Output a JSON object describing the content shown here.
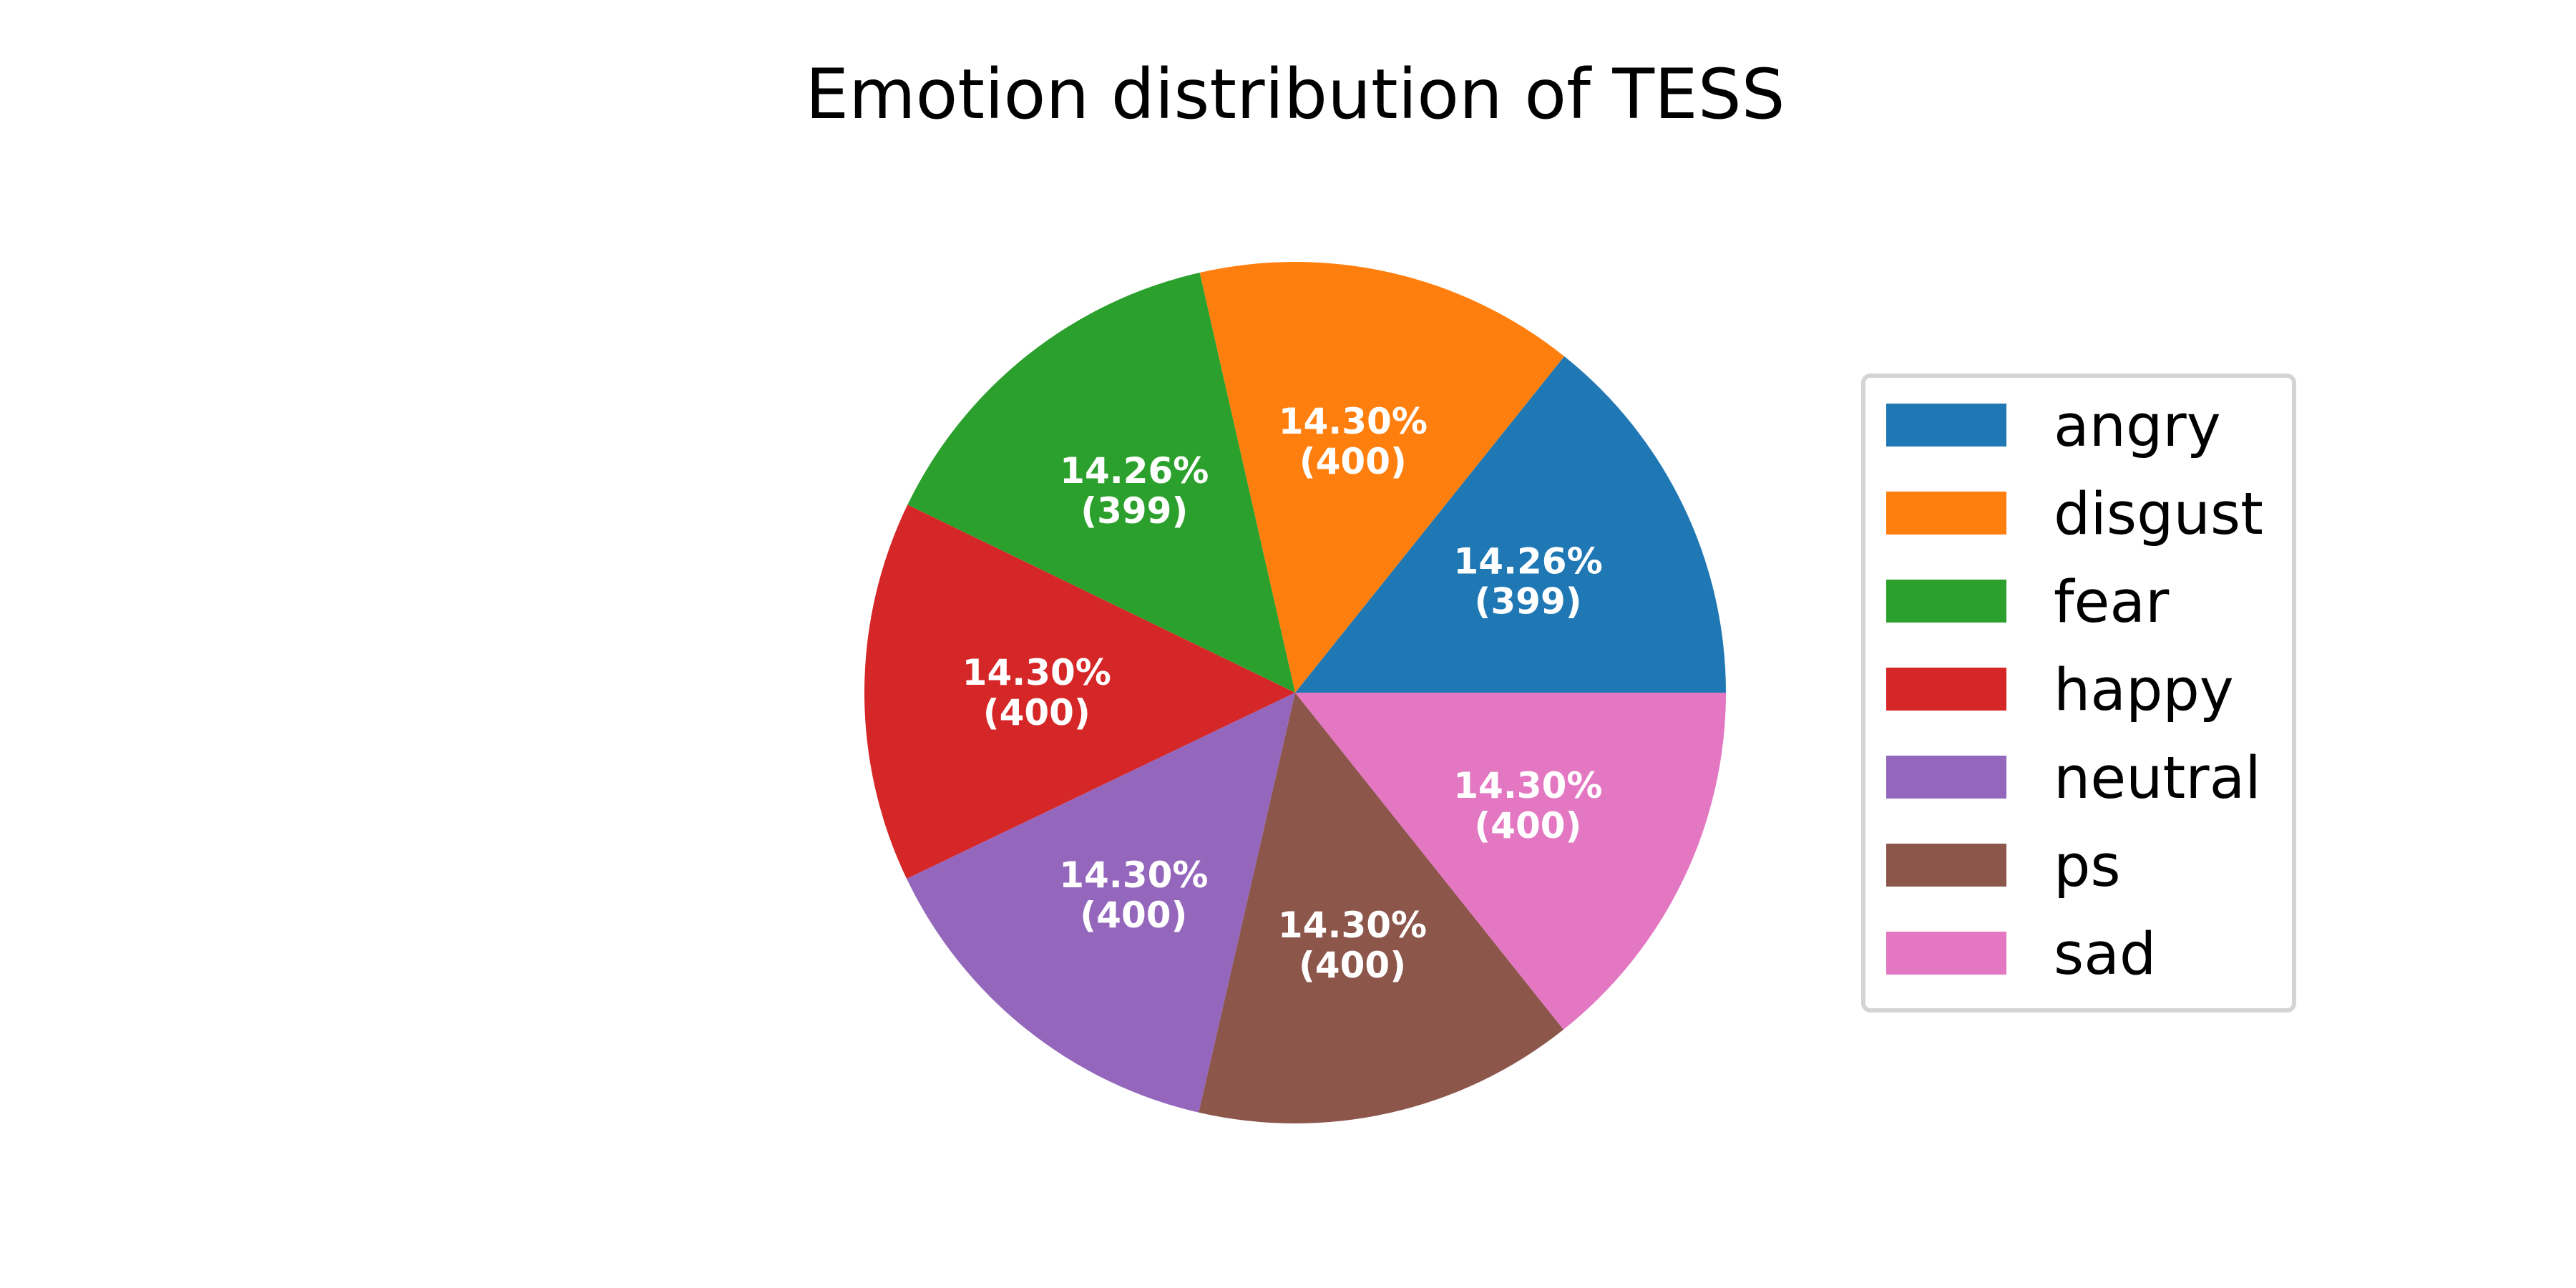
{
  "chart_data": {
    "type": "pie",
    "title": "Emotion distribution of TESS",
    "legend_position": "right",
    "start_angle_deg": 0,
    "direction": "counterclockwise",
    "slices": [
      {
        "label": "angry",
        "value": 399,
        "percent_label": "14.26%",
        "count_label": "(399)",
        "color": "#1f77b4"
      },
      {
        "label": "disgust",
        "value": 400,
        "percent_label": "14.30%",
        "count_label": "(400)",
        "color": "#ff7f0e"
      },
      {
        "label": "fear",
        "value": 399,
        "percent_label": "14.26%",
        "count_label": "(399)",
        "color": "#2ca02c"
      },
      {
        "label": "happy",
        "value": 400,
        "percent_label": "14.30%",
        "count_label": "(400)",
        "color": "#d62728"
      },
      {
        "label": "neutral",
        "value": 400,
        "percent_label": "14.30%",
        "count_label": "(400)",
        "color": "#9467bd"
      },
      {
        "label": "ps",
        "value": 400,
        "percent_label": "14.30%",
        "count_label": "(400)",
        "color": "#8c564b"
      },
      {
        "label": "sad",
        "value": 400,
        "percent_label": "14.30%",
        "count_label": "(400)",
        "color": "#e377c2"
      }
    ]
  }
}
